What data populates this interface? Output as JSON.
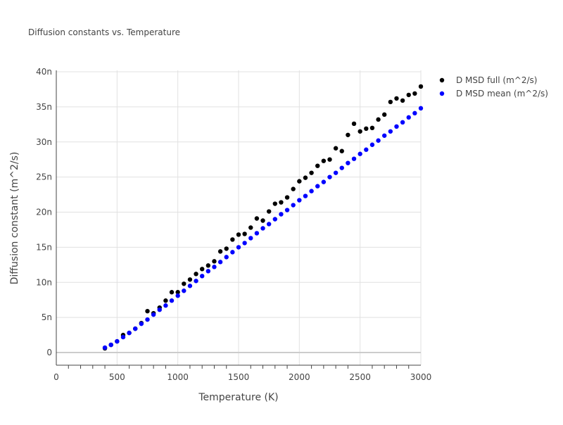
{
  "chart_data": {
    "type": "scatter",
    "title": "Diffusion constants vs. Temperature",
    "xlabel": "Temperature (K)",
    "ylabel": "Diffusion constant (m^2/s)",
    "xlim": [
      0,
      3000
    ],
    "ylim": [
      -1.8,
      40.2
    ],
    "y_unit_suffix": "n",
    "xticks": [
      0,
      500,
      1000,
      1500,
      2000,
      2500,
      3000
    ],
    "xtick_labels": [
      "0",
      "500",
      "1000",
      "1500",
      "2000",
      "2500",
      "3000"
    ],
    "yticks": [
      0,
      5,
      10,
      15,
      20,
      25,
      30,
      35,
      40
    ],
    "ytick_labels": [
      "0",
      "5n",
      "10n",
      "15n",
      "20n",
      "25n",
      "30n",
      "35n",
      "40n"
    ],
    "grid": true,
    "legend_placement": "top-right outside",
    "x": [
      400,
      450,
      500,
      550,
      600,
      650,
      700,
      750,
      800,
      850,
      900,
      950,
      1000,
      1050,
      1100,
      1150,
      1200,
      1250,
      1300,
      1350,
      1400,
      1450,
      1500,
      1550,
      1600,
      1650,
      1700,
      1750,
      1800,
      1850,
      1900,
      1950,
      2000,
      2050,
      2100,
      2150,
      2200,
      2250,
      2300,
      2350,
      2400,
      2450,
      2500,
      2550,
      2600,
      2650,
      2700,
      2750,
      2800,
      2850,
      2900,
      2950,
      3000
    ],
    "series": [
      {
        "name": "D MSD full (m^2/s)",
        "color": "#000000",
        "values": [
          0.6,
          1.1,
          1.6,
          2.5,
          2.8,
          3.4,
          4.2,
          5.9,
          5.6,
          6.4,
          7.4,
          8.6,
          8.6,
          9.8,
          10.4,
          11.2,
          11.9,
          12.4,
          13.0,
          14.4,
          14.8,
          16.1,
          16.8,
          16.9,
          17.8,
          19.1,
          18.8,
          20.1,
          21.2,
          21.4,
          22.1,
          23.3,
          24.4,
          24.9,
          25.6,
          26.6,
          27.3,
          27.5,
          29.1,
          28.7,
          31.0,
          32.6,
          31.5,
          31.9,
          32.0,
          33.2,
          33.9,
          35.7,
          36.2,
          35.9,
          36.7,
          36.9,
          37.9
        ]
      },
      {
        "name": "D MSD mean (m^2/s)",
        "color": "#0000ff",
        "values": [
          0.7,
          1.1,
          1.6,
          2.2,
          2.8,
          3.4,
          4.1,
          4.7,
          5.4,
          6.1,
          6.7,
          7.4,
          8.1,
          8.8,
          9.5,
          10.2,
          10.9,
          11.6,
          12.2,
          12.9,
          13.6,
          14.3,
          15.0,
          15.6,
          16.3,
          17.0,
          17.7,
          18.3,
          19.0,
          19.7,
          20.3,
          21.0,
          21.7,
          22.3,
          23.0,
          23.7,
          24.3,
          25.0,
          25.6,
          26.3,
          27.0,
          27.6,
          28.3,
          28.9,
          29.6,
          30.2,
          30.9,
          31.5,
          32.2,
          32.8,
          33.5,
          34.1,
          34.8
        ]
      }
    ]
  }
}
